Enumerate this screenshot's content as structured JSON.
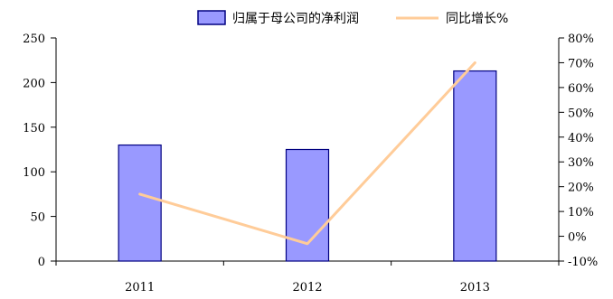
{
  "chart_data": {
    "type": "bar",
    "categories": [
      "2011",
      "2012",
      "2013"
    ],
    "series": [
      {
        "name": "归属于母公司的净利润",
        "type": "bar",
        "axis": "left",
        "values": [
          130,
          125,
          213
        ],
        "color": "#9999ff",
        "edge_color": "#000080"
      },
      {
        "name": "同比增长%",
        "type": "line",
        "axis": "right",
        "values": [
          17,
          -3,
          70
        ],
        "color": "#ffcc99"
      }
    ],
    "y_left": {
      "ylim": [
        0,
        250
      ],
      "ticks": [
        0,
        50,
        100,
        150,
        200,
        250
      ],
      "tick_labels": [
        "0",
        "50",
        "100",
        "150",
        "200",
        "250"
      ]
    },
    "y_right": {
      "ylim": [
        -10,
        80
      ],
      "ticks": [
        -10,
        0,
        10,
        20,
        30,
        40,
        50,
        60,
        70,
        80
      ],
      "tick_labels": [
        "-10%",
        "0%",
        "10%",
        "20%",
        "30%",
        "40%",
        "50%",
        "60%",
        "70%",
        "80%"
      ]
    },
    "legend": {
      "placement": "top-center",
      "entries": [
        "归属于母公司的净利润",
        "同比增长%"
      ]
    },
    "grid": false
  }
}
